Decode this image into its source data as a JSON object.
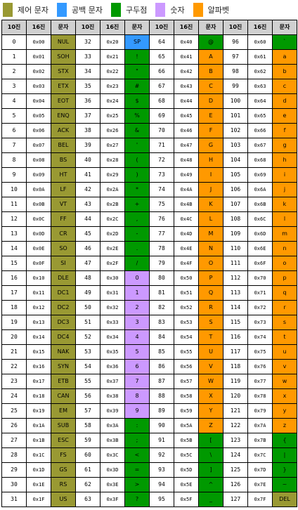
{
  "legend": [
    {
      "label": "제어 문자",
      "color": "#999933"
    },
    {
      "label": "공백 문자",
      "color": "#3399ff"
    },
    {
      "label": "구두점",
      "color": "#009900"
    },
    {
      "label": "숫자",
      "color": "#cc99ff"
    },
    {
      "label": "알파벳",
      "color": "#ff9900"
    }
  ],
  "headers": [
    "10진",
    "16진",
    "문자",
    "10진",
    "16진",
    "문자",
    "10진",
    "16진",
    "문자",
    "10진",
    "16진",
    "문자"
  ],
  "colors": {
    "control": "#999933",
    "space": "#3399ff",
    "punct": "#009900",
    "digit": "#cc99ff",
    "alpha": "#ff9900"
  },
  "rows": [
    [
      "0",
      "0x00",
      "NUL",
      "32",
      "0x20",
      "SP",
      "64",
      "0x40",
      "@",
      "96",
      "0x60",
      "`"
    ],
    [
      "1",
      "0x01",
      "SOH",
      "33",
      "0x21",
      "!",
      "65",
      "0x41",
      "A",
      "97",
      "0x61",
      "a"
    ],
    [
      "2",
      "0x02",
      "STX",
      "34",
      "0x22",
      "\"",
      "66",
      "0x42",
      "B",
      "98",
      "0x62",
      "b"
    ],
    [
      "3",
      "0x03",
      "ETX",
      "35",
      "0x23",
      "#",
      "67",
      "0x43",
      "C",
      "99",
      "0x63",
      "c"
    ],
    [
      "4",
      "0x04",
      "EOT",
      "36",
      "0x24",
      "$",
      "68",
      "0x44",
      "D",
      "100",
      "0x64",
      "d"
    ],
    [
      "5",
      "0x05",
      "ENQ",
      "37",
      "0x25",
      "%",
      "69",
      "0x45",
      "E",
      "101",
      "0x65",
      "e"
    ],
    [
      "6",
      "0x06",
      "ACK",
      "38",
      "0x26",
      "&",
      "70",
      "0x46",
      "F",
      "102",
      "0x66",
      "f"
    ],
    [
      "7",
      "0x07",
      "BEL",
      "39",
      "0x27",
      "'",
      "71",
      "0x47",
      "G",
      "103",
      "0x67",
      "g"
    ],
    [
      "8",
      "0x08",
      "BS",
      "40",
      "0x28",
      "(",
      "72",
      "0x48",
      "H",
      "104",
      "0x68",
      "h"
    ],
    [
      "9",
      "0x09",
      "HT",
      "41",
      "0x29",
      ")",
      "73",
      "0x49",
      "I",
      "105",
      "0x69",
      "i"
    ],
    [
      "10",
      "0x0A",
      "LF",
      "42",
      "0x2A",
      "*",
      "74",
      "0x4A",
      "J",
      "106",
      "0x6A",
      "j"
    ],
    [
      "11",
      "0x0B",
      "VT",
      "43",
      "0x2B",
      "+",
      "75",
      "0x4B",
      "K",
      "107",
      "0x6B",
      "k"
    ],
    [
      "12",
      "0x0C",
      "FF",
      "44",
      "0x2C",
      ",",
      "76",
      "0x4C",
      "L",
      "108",
      "0x6C",
      "l"
    ],
    [
      "13",
      "0x0D",
      "CR",
      "45",
      "0x2D",
      "-",
      "77",
      "0x4D",
      "M",
      "109",
      "0x6D",
      "m"
    ],
    [
      "14",
      "0x0E",
      "SO",
      "46",
      "0x2E",
      ".",
      "78",
      "0x4E",
      "N",
      "110",
      "0x6E",
      "n"
    ],
    [
      "15",
      "0x0F",
      "SI",
      "47",
      "0x2F",
      "/",
      "79",
      "0x4F",
      "O",
      "111",
      "0x6F",
      "o"
    ],
    [
      "16",
      "0x10",
      "DLE",
      "48",
      "0x30",
      "0",
      "80",
      "0x50",
      "P",
      "112",
      "0x70",
      "p"
    ],
    [
      "17",
      "0x11",
      "DC1",
      "49",
      "0x31",
      "1",
      "81",
      "0x51",
      "Q",
      "113",
      "0x71",
      "q"
    ],
    [
      "18",
      "0x12",
      "DC2",
      "50",
      "0x32",
      "2",
      "82",
      "0x52",
      "R",
      "114",
      "0x72",
      "r"
    ],
    [
      "19",
      "0x13",
      "DC3",
      "51",
      "0x33",
      "3",
      "83",
      "0x53",
      "S",
      "115",
      "0x73",
      "s"
    ],
    [
      "20",
      "0x14",
      "DC4",
      "52",
      "0x34",
      "4",
      "84",
      "0x54",
      "T",
      "116",
      "0x74",
      "t"
    ],
    [
      "21",
      "0x15",
      "NAK",
      "53",
      "0x35",
      "5",
      "85",
      "0x55",
      "U",
      "117",
      "0x75",
      "u"
    ],
    [
      "22",
      "0x16",
      "SYN",
      "54",
      "0x36",
      "6",
      "86",
      "0x56",
      "V",
      "118",
      "0x76",
      "v"
    ],
    [
      "23",
      "0x17",
      "ETB",
      "55",
      "0x37",
      "7",
      "87",
      "0x57",
      "W",
      "119",
      "0x77",
      "w"
    ],
    [
      "24",
      "0x18",
      "CAN",
      "56",
      "0x38",
      "8",
      "88",
      "0x58",
      "X",
      "120",
      "0x78",
      "x"
    ],
    [
      "25",
      "0x19",
      "EM",
      "57",
      "0x39",
      "9",
      "89",
      "0x59",
      "Y",
      "121",
      "0x79",
      "y"
    ],
    [
      "26",
      "0x1A",
      "SUB",
      "58",
      "0x3A",
      ":",
      "90",
      "0x5A",
      "Z",
      "122",
      "0x7A",
      "z"
    ],
    [
      "27",
      "0x1B",
      "ESC",
      "59",
      "0x3B",
      ";",
      "91",
      "0x5B",
      "[",
      "123",
      "0x7B",
      "{"
    ],
    [
      "28",
      "0x1C",
      "FS",
      "60",
      "0x3C",
      "<",
      "92",
      "0x5C",
      "\\",
      "124",
      "0x7C",
      "|"
    ],
    [
      "29",
      "0x1D",
      "GS",
      "61",
      "0x3D",
      "=",
      "93",
      "0x5D",
      "]",
      "125",
      "0x7D",
      "}"
    ],
    [
      "30",
      "0x1E",
      "RS",
      "62",
      "0x3E",
      ">",
      "94",
      "0x5E",
      "^",
      "126",
      "0x7E",
      "~"
    ],
    [
      "31",
      "0x1F",
      "US",
      "63",
      "0x3F",
      "?",
      "95",
      "0x5F",
      "_",
      "127",
      "0x7F",
      "DEL"
    ]
  ]
}
